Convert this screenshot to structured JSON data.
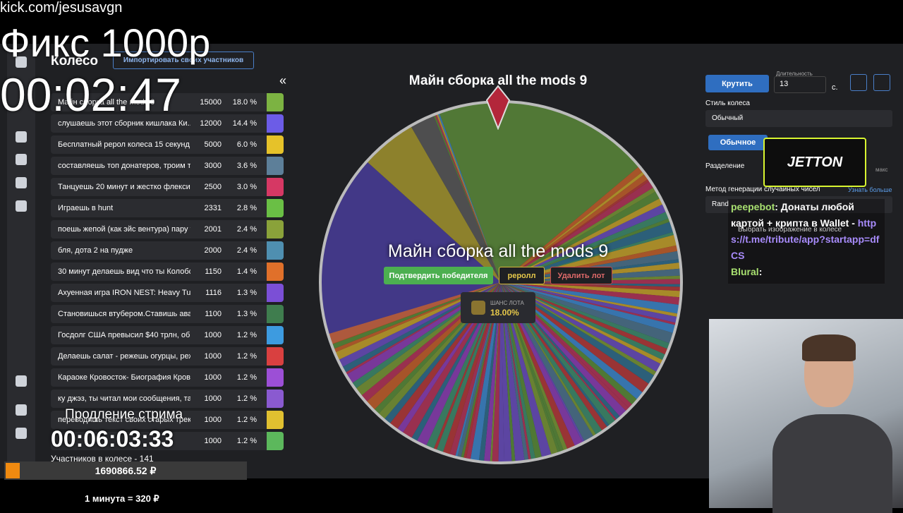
{
  "overlay": {
    "url": "kick.com/jesusavgn",
    "fix": "Фикс 1000р",
    "timer": "00:02:47",
    "extension_label": "Продление стрима",
    "extension_timer": "00:06:03:33",
    "total": "1690866.52 ₽",
    "rate": "1 минута = 320 ₽"
  },
  "app": {
    "title": "Колесо",
    "import_button": "Импортировать своих участников",
    "collapse": "«",
    "participants": "Участников в колесе - 141",
    "lots": [
      {
        "name": "Майн сборка all the mods 9",
        "amount": "15000",
        "percent": "18.0 %",
        "color": "#7cb342"
      },
      {
        "name": "слушаешь этот сборник кишлака Ки...",
        "amount": "12000",
        "percent": "14.4 %",
        "color": "#6c5ce7"
      },
      {
        "name": "Бесплатный рерол колеса 15 секунд",
        "amount": "5000",
        "percent": "6.0 %",
        "color": "#e6c229"
      },
      {
        "name": "составляешь топ донатеров, троим т...",
        "amount": "3000",
        "percent": "3.6 %",
        "color": "#5d7f99"
      },
      {
        "name": "Танцуешь 20 минут и жестко флекси...",
        "amount": "2500",
        "percent": "3.0 %",
        "color": "#d63864"
      },
      {
        "name": "Играешь в hunt",
        "amount": "2331",
        "percent": "2.8 %",
        "color": "#6abf45"
      },
      {
        "name": "поешь жепой (как эйс вентура) пару т...",
        "amount": "2001",
        "percent": "2.4 %",
        "color": "#8aa23a"
      },
      {
        "name": "бля, дота 2 на пудже",
        "amount": "2000",
        "percent": "2.4 %",
        "color": "#4f8fb0"
      },
      {
        "name": "30 минут делаешь вид что ты Колобок...",
        "amount": "1150",
        "percent": "1.4 %",
        "color": "#e0702a"
      },
      {
        "name": "Ахуенная игра IRON NEST: Heavy Turre...",
        "amount": "1116",
        "percent": "1.3 %",
        "color": "#7b4fd6"
      },
      {
        "name": "Становишься втубером.Ставишь ават...",
        "amount": "1100",
        "percent": "1.3 %",
        "color": "#3f7d4e"
      },
      {
        "name": "Госдолг США превысил $40 трлн, обн...",
        "amount": "1000",
        "percent": "1.2 %",
        "color": "#3d9be0"
      },
      {
        "name": "Делаешь салат - режешь огурцы, реж...",
        "amount": "1000",
        "percent": "1.2 %",
        "color": "#d94040"
      },
      {
        "name": "Караоке Кровосток- Биография Кров...",
        "amount": "1000",
        "percent": "1.2 %",
        "color": "#9c4fd6"
      },
      {
        "name": "ку джэз, ты читал мои сообщения, та...",
        "amount": "1000",
        "percent": "1.2 %",
        "color": "#8a5ad0"
      },
      {
        "name": "переводишь текст своих старых трек...",
        "amount": "1000",
        "percent": "1.2 %",
        "color": "#e0c030"
      },
      {
        "amount": "1000",
        "percent": "1.2 %",
        "color": "#5cb85c"
      }
    ]
  },
  "wheel": {
    "title": "Майн сборка all the mods 9",
    "winner": "Майн сборка all the mods 9",
    "confirm": "Подтвердить победителя",
    "reroll": "реролл",
    "delete": "Удалить лот",
    "chance_label": "Шанс лота",
    "chance": "18.00%"
  },
  "settings": {
    "spin": "Крутить",
    "duration_label": "Длительность",
    "duration": "13",
    "seconds": "с.",
    "style_label": "Стиль колеса",
    "style": "Обычный",
    "tab": "Обычное",
    "split_label": "Разделение",
    "max": "макс",
    "rng_label": "Метод генерации случайных чисел",
    "learn_more": "Узнать больше",
    "rng": "Rand",
    "image": "Выбрать изображение в колесе"
  },
  "sponsor": {
    "logo": "JETTON"
  },
  "chat": [
    {
      "user": "peepebot",
      "text": ": Донаты любой картой + крипта в Wallet - ",
      "link": "https://t.me/tribute/app?startapp=dfCS"
    },
    {
      "user": "Blural",
      "text": ":"
    }
  ]
}
